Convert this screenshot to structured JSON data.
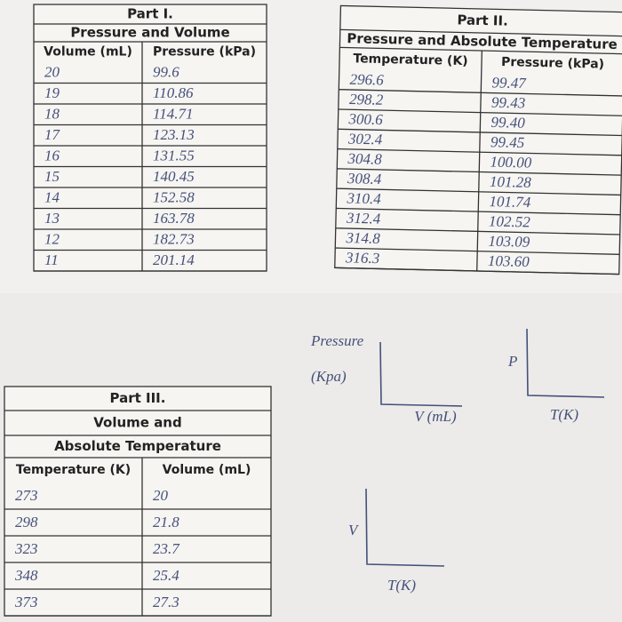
{
  "part1": {
    "title": "Part I.",
    "subtitle": [
      "Pressure and Volume"
    ],
    "headers": [
      "Volume (mL)",
      "Pressure (kPa)"
    ],
    "rows": [
      [
        "20",
        "99.6"
      ],
      [
        "19",
        "110.86"
      ],
      [
        "18",
        "114.71"
      ],
      [
        "17",
        "123.13"
      ],
      [
        "16",
        "131.55"
      ],
      [
        "15",
        "140.45"
      ],
      [
        "14",
        "152.58"
      ],
      [
        "13",
        "163.78"
      ],
      [
        "12",
        "182.73"
      ],
      [
        "11",
        "201.14"
      ]
    ]
  },
  "part2": {
    "title": "Part II.",
    "subtitle": [
      "Pressure and Absolute Temperature"
    ],
    "headers": [
      "Temperature (K)",
      "Pressure (kPa)"
    ],
    "rows": [
      [
        "296.6",
        "99.47"
      ],
      [
        "298.2",
        "99.43"
      ],
      [
        "300.6",
        "99.40"
      ],
      [
        "302.4",
        "99.45"
      ],
      [
        "304.8",
        "100.00"
      ],
      [
        "308.4",
        "101.28"
      ],
      [
        "310.4",
        "101.74"
      ],
      [
        "312.4",
        "102.52"
      ],
      [
        "314.8",
        "103.09"
      ],
      [
        "316.3",
        "103.60"
      ]
    ]
  },
  "part3": {
    "title": "Part III.",
    "subtitle": [
      "Volume and",
      "Absolute Temperature"
    ],
    "headers": [
      "Temperature (K)",
      "Volume (mL)"
    ],
    "rows": [
      [
        "273",
        "20"
      ],
      [
        "298",
        "21.8"
      ],
      [
        "323",
        "23.7"
      ],
      [
        "348",
        "25.4"
      ],
      [
        "373",
        "27.3"
      ]
    ]
  },
  "graphs": [
    {
      "y_label": [
        "Pressure",
        "(Kpa)"
      ],
      "x_label": "V (mL)"
    },
    {
      "y_label": [
        "P"
      ],
      "x_label": "T(K)"
    },
    {
      "y_label": [
        "V"
      ],
      "x_label": "T(K)"
    }
  ]
}
